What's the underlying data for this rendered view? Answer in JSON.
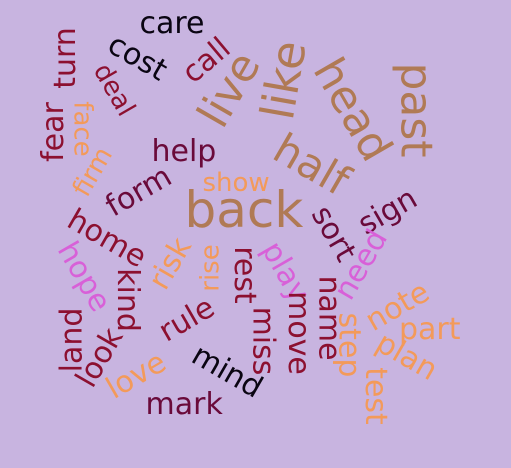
{
  "background": "#c8b4e0",
  "palette": {
    "dark_red": "#8c1030",
    "maroon": "#6a0a3a",
    "black": "#0a0512",
    "tan": "#b07a55",
    "orange": "#f39a5a",
    "magenta": "#d860d8"
  },
  "words": [
    {
      "text": "care"
    },
    {
      "text": "cost"
    },
    {
      "text": "call"
    },
    {
      "text": "fear"
    },
    {
      "text": "turn"
    },
    {
      "text": "deal"
    },
    {
      "text": "face"
    },
    {
      "text": "live"
    },
    {
      "text": "like"
    },
    {
      "text": "head"
    },
    {
      "text": "past"
    },
    {
      "text": "half"
    },
    {
      "text": "help"
    },
    {
      "text": "firm"
    },
    {
      "text": "form"
    },
    {
      "text": "show"
    },
    {
      "text": "back"
    },
    {
      "text": "sort"
    },
    {
      "text": "sign"
    },
    {
      "text": "home"
    },
    {
      "text": "hope"
    },
    {
      "text": "risk"
    },
    {
      "text": "rise"
    },
    {
      "text": "rest"
    },
    {
      "text": "play"
    },
    {
      "text": "need"
    },
    {
      "text": "kind"
    },
    {
      "text": "miss"
    },
    {
      "text": "move"
    },
    {
      "text": "name"
    },
    {
      "text": "note"
    },
    {
      "text": "land"
    },
    {
      "text": "rule"
    },
    {
      "text": "step"
    },
    {
      "text": "part"
    },
    {
      "text": "look"
    },
    {
      "text": "love"
    },
    {
      "text": "mind"
    },
    {
      "text": "plan"
    },
    {
      "text": "test"
    },
    {
      "text": "mark"
    }
  ]
}
